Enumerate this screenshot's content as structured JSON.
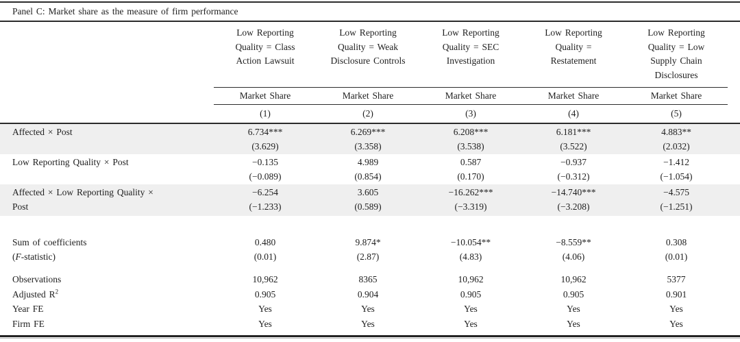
{
  "panel_title": "Panel C: Market share as the measure of firm performance",
  "columns": [
    {
      "condition": "Low Reporting Quality = Class Action Lawsuit",
      "measure": "Market Share",
      "number": "(1)"
    },
    {
      "condition": "Low Reporting Quality = Weak Disclosure Controls",
      "measure": "Market Share",
      "number": "(2)"
    },
    {
      "condition": "Low Reporting Quality = SEC Investigation",
      "measure": "Market Share",
      "number": "(3)"
    },
    {
      "condition": "Low Reporting Quality = Restatement",
      "measure": "Market Share",
      "number": "(4)"
    },
    {
      "condition": "Low Reporting Quality = Low Supply Chain Disclosures",
      "measure": "Market Share",
      "number": "(5)"
    }
  ],
  "coef_rows": [
    {
      "label_line1": "Affected × Post",
      "label_line2": "",
      "coefs": [
        "6.734***",
        "6.269***",
        "6.208***",
        "6.181***",
        "4.883**"
      ],
      "tstats": [
        "(3.629)",
        "(3.358)",
        "(3.538)",
        "(3.522)",
        "(2.032)"
      ]
    },
    {
      "label_line1": "Low Reporting Quality × Post",
      "label_line2": "",
      "coefs": [
        "−0.135",
        "4.989",
        "0.587",
        "−0.937",
        "−1.412"
      ],
      "tstats": [
        "(−0.089)",
        "(0.854)",
        "(0.170)",
        "(−0.312)",
        "(−1.054)"
      ]
    },
    {
      "label_line1": "Affected × Low Reporting Quality ×",
      "label_line2": "Post",
      "coefs": [
        "−6.254",
        "3.605",
        "−16.262***",
        "−14.740***",
        "−4.575"
      ],
      "tstats": [
        "(−1.233)",
        "(0.589)",
        "(−3.319)",
        "(−3.208)",
        "(−1.251)"
      ]
    }
  ],
  "sum_row": {
    "label_line1": "Sum of coefficients",
    "label_paren_open": "(",
    "label_f": "F",
    "label_rest": "-statistic)",
    "values": [
      "0.480",
      "9.874*",
      "−10.054**",
      "−8.559**",
      "0.308"
    ],
    "fstats": [
      "(0.01)",
      "(2.87)",
      "(4.83)",
      "(4.06)",
      "(0.01)"
    ]
  },
  "stats_rows": {
    "observations": {
      "label": "Observations",
      "values": [
        "10,962",
        "8365",
        "10,962",
        "10,962",
        "5377"
      ]
    },
    "adj_r2": {
      "label_main": "Adjusted R",
      "label_sup": "2",
      "values": [
        "0.905",
        "0.904",
        "0.905",
        "0.905",
        "0.901"
      ]
    },
    "year_fe": {
      "label": "Year FE",
      "values": [
        "Yes",
        "Yes",
        "Yes",
        "Yes",
        "Yes"
      ]
    },
    "firm_fe": {
      "label": "Firm FE",
      "values": [
        "Yes",
        "Yes",
        "Yes",
        "Yes",
        "Yes"
      ]
    }
  }
}
